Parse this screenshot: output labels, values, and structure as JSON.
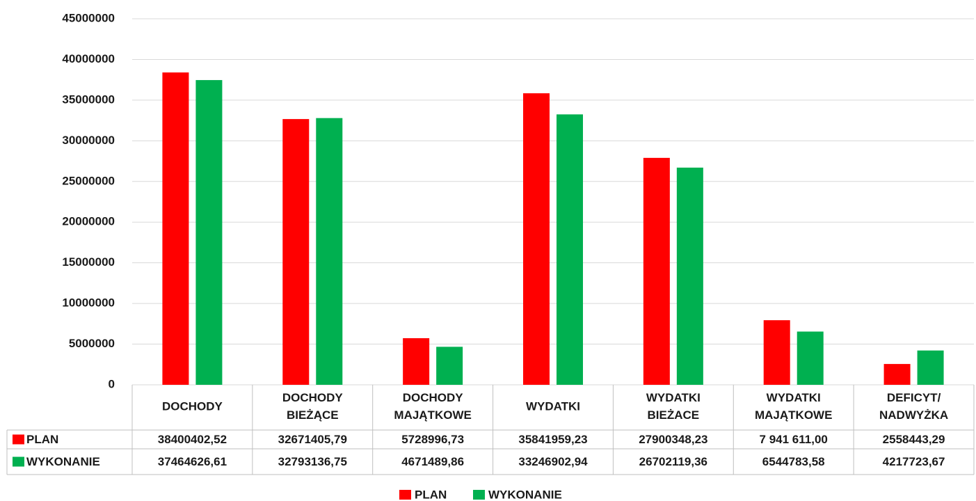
{
  "chart_data": {
    "type": "bar",
    "categories": [
      "DOCHODY",
      "DOCHODY\nBIEŻĄCE",
      "DOCHODY\nMAJĄTKOWE",
      "WYDATKI",
      "WYDATKI\nBIEŻACE",
      "WYDATKI\nMAJĄTKOWE",
      "DEFICYT/\nNADWYŻKA"
    ],
    "series": [
      {
        "name": "PLAN",
        "color": "#ff0000",
        "values": [
          38400402.52,
          32671405.79,
          5728996.73,
          35841959.23,
          27900348.23,
          7941611.0,
          2558443.29
        ],
        "value_labels": [
          "38400402,52",
          "32671405,79",
          "5728996,73",
          "35841959,23",
          "27900348,23",
          "7 941 611,00",
          "2558443,29"
        ]
      },
      {
        "name": "WYKONANIE",
        "color": "#00b050",
        "values": [
          37464626.61,
          32793136.75,
          4671489.86,
          33246902.94,
          26702119.36,
          6544783.58,
          4217723.67
        ],
        "value_labels": [
          "37464626,61",
          "32793136,75",
          "4671489,86",
          "33246902,94",
          "26702119,36",
          "6544783,58",
          "4217723,67"
        ]
      }
    ],
    "ylim": [
      0,
      45000000
    ],
    "yticks": [
      0,
      5000000,
      10000000,
      15000000,
      20000000,
      25000000,
      30000000,
      35000000,
      40000000,
      45000000
    ],
    "grid": true,
    "legend": "bottom"
  }
}
